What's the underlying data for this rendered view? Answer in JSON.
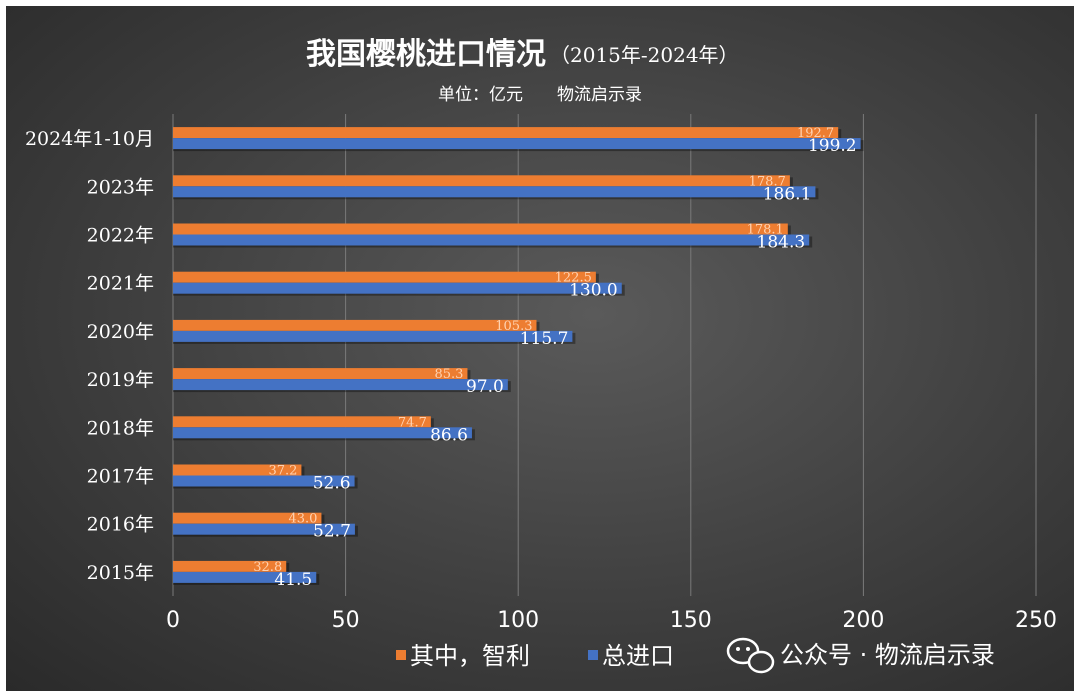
{
  "chart_data": {
    "type": "bar",
    "orientation": "horizontal",
    "title": "我国樱桃进口情况",
    "title_suffix": "（2015年-2024年）",
    "subtitle": "单位：亿元　　物流启示录",
    "categories": [
      "2024年1-10月",
      "2023年",
      "2022年",
      "2021年",
      "2020年",
      "2019年",
      "2018年",
      "2017年",
      "2016年",
      "2015年"
    ],
    "series": [
      {
        "name": "其中，智利",
        "color": "#ed7d31",
        "values": [
          192.7,
          178.7,
          178.1,
          122.5,
          105.3,
          85.3,
          74.7,
          37.2,
          43.0,
          32.8
        ]
      },
      {
        "name": "总进口",
        "color": "#4472c4",
        "values": [
          199.2,
          186.1,
          184.3,
          130.0,
          115.7,
          97.0,
          86.6,
          52.6,
          52.7,
          41.5
        ]
      }
    ],
    "xlim": [
      0,
      250
    ],
    "xticks": [
      "0",
      "50",
      "100",
      "150",
      "200",
      "250"
    ],
    "grid": true,
    "legend_position": "bottom"
  },
  "watermark": {
    "icon": "wechat-icon",
    "text": "公众号 · 物流启示录"
  }
}
